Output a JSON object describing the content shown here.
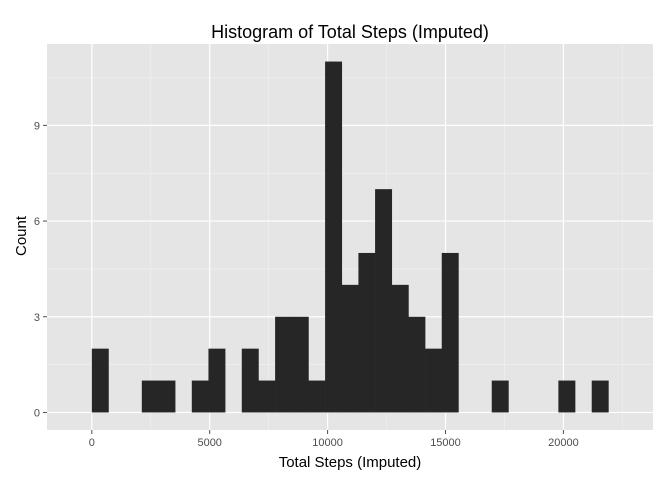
{
  "chart_data": {
    "type": "bar",
    "title": "Histogram of Total Steps (Imputed)",
    "xlabel": "Total Steps (Imputed)",
    "ylabel": "Count",
    "bin_width": 706.7,
    "bins": [
      {
        "x0": 0,
        "count": 2
      },
      {
        "x0": 706.7,
        "count": 0
      },
      {
        "x0": 1413.4,
        "count": 0
      },
      {
        "x0": 2120.1,
        "count": 1
      },
      {
        "x0": 2826.8,
        "count": 1
      },
      {
        "x0": 3533.5,
        "count": 0
      },
      {
        "x0": 4240.2,
        "count": 1
      },
      {
        "x0": 4946.9,
        "count": 2
      },
      {
        "x0": 5653.6,
        "count": 0
      },
      {
        "x0": 6360.3,
        "count": 2
      },
      {
        "x0": 7067.0,
        "count": 1
      },
      {
        "x0": 7773.7,
        "count": 3
      },
      {
        "x0": 8480.4,
        "count": 3
      },
      {
        "x0": 9187.1,
        "count": 1
      },
      {
        "x0": 9893.8,
        "count": 11
      },
      {
        "x0": 10600.5,
        "count": 4
      },
      {
        "x0": 11307.2,
        "count": 5
      },
      {
        "x0": 12013.9,
        "count": 7
      },
      {
        "x0": 12720.6,
        "count": 4
      },
      {
        "x0": 13427.3,
        "count": 3
      },
      {
        "x0": 14134.0,
        "count": 2
      },
      {
        "x0": 14840.7,
        "count": 5
      },
      {
        "x0": 15547.4,
        "count": 0
      },
      {
        "x0": 16254.1,
        "count": 0
      },
      {
        "x0": 16960.8,
        "count": 1
      },
      {
        "x0": 17667.5,
        "count": 0
      },
      {
        "x0": 18374.2,
        "count": 0
      },
      {
        "x0": 19080.9,
        "count": 0
      },
      {
        "x0": 19787.6,
        "count": 1
      },
      {
        "x0": 20494.3,
        "count": 0
      },
      {
        "x0": 21201.0,
        "count": 1
      }
    ],
    "xlim": [
      -1900,
      23800
    ],
    "ylim": [
      -0.55,
      11.55
    ],
    "x_ticks": [
      0,
      5000,
      10000,
      15000,
      20000
    ],
    "y_ticks": [
      0,
      3,
      6,
      9
    ],
    "grid": true,
    "colors": {
      "panel": "#e5e5e5",
      "grid_major": "#ffffff",
      "grid_minor": "#f2f2f2",
      "bar": "#262626",
      "tick_text": "#4d4d4d"
    }
  }
}
